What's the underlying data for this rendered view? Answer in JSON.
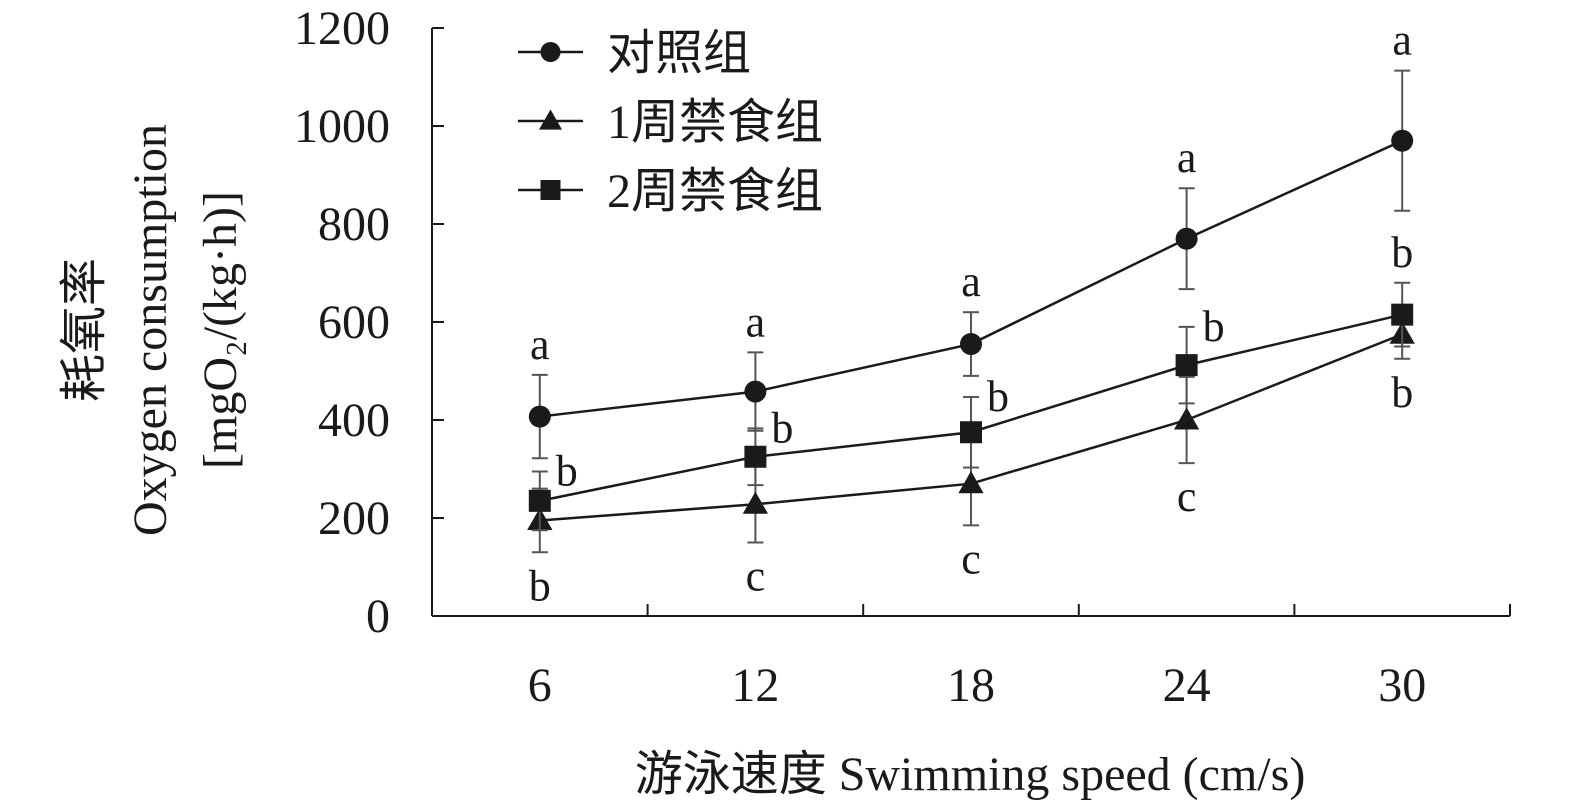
{
  "chart_data": {
    "type": "line",
    "title": "",
    "xlabel": "游泳速度 Swimming speed (cm/s)",
    "ylabel_lines": [
      "耗氧率",
      "Oxygen consumption",
      "[mgO₂/(kg·h)]"
    ],
    "x": [
      6,
      12,
      18,
      24,
      30
    ],
    "xlim": [
      3,
      33
    ],
    "ylim": [
      0,
      1200
    ],
    "yticks": [
      0,
      200,
      400,
      600,
      800,
      1000,
      1200
    ],
    "xticks": [
      6,
      12,
      18,
      24,
      30
    ],
    "grid": false,
    "legend_position": "top-left",
    "series": [
      {
        "name": "对照组",
        "marker": "circle",
        "values": [
          407,
          458,
          555,
          770,
          970
        ],
        "errors": [
          85,
          80,
          65,
          103,
          143
        ],
        "labels": [
          "a",
          "a",
          "a",
          "a",
          "a"
        ],
        "label_side": [
          "above",
          "above",
          "above",
          "above",
          "above"
        ]
      },
      {
        "name": "1周禁食组",
        "marker": "triangle",
        "values": [
          195,
          228,
          270,
          400,
          575
        ],
        "errors": [
          65,
          78,
          85,
          88,
          50
        ],
        "labels": [
          "b",
          "c",
          "c",
          "c",
          "b"
        ],
        "label_side": [
          "below",
          "below",
          "below",
          "below",
          "below"
        ]
      },
      {
        "name": "2周禁食组",
        "marker": "square",
        "values": [
          235,
          325,
          375,
          512,
          615
        ],
        "errors": [
          60,
          58,
          72,
          78,
          65
        ],
        "labels": [
          "b",
          "b",
          "b",
          "b",
          "b"
        ],
        "label_side": [
          "right",
          "right",
          "right",
          "right",
          "above"
        ]
      }
    ],
    "colors": {
      "line": "#1a1a1a",
      "marker": "#1a1a1a",
      "errorbar": "#555555"
    }
  }
}
